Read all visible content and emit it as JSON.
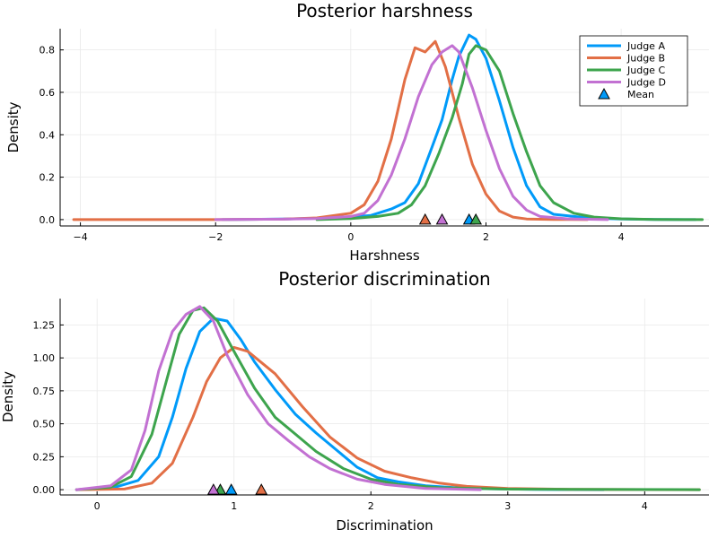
{
  "chart_data": [
    {
      "type": "line",
      "title": "Posterior harshness",
      "xlabel": "Harshness",
      "ylabel": "Density",
      "xlim": [
        -4.3,
        5.3
      ],
      "ylim": [
        -0.03,
        0.9
      ],
      "xticks": [
        -4,
        -2,
        0,
        2,
        4
      ],
      "yticks": [
        0.0,
        0.2,
        0.4,
        0.6,
        0.8
      ],
      "grid": true,
      "legend_position": "top-right",
      "legend_mean_label": "Mean",
      "series": [
        {
          "name": "Judge A",
          "color": "#009af9",
          "mean": 1.75,
          "points": [
            [
              -1.9,
              0
            ],
            [
              -1.0,
              0.003
            ],
            [
              -0.5,
              0.006
            ],
            [
              0,
              0.012
            ],
            [
              0.3,
              0.02
            ],
            [
              0.6,
              0.05
            ],
            [
              0.8,
              0.08
            ],
            [
              1.0,
              0.17
            ],
            [
              1.2,
              0.34
            ],
            [
              1.35,
              0.47
            ],
            [
              1.5,
              0.66
            ],
            [
              1.6,
              0.77
            ],
            [
              1.75,
              0.87
            ],
            [
              1.85,
              0.85
            ],
            [
              2.0,
              0.76
            ],
            [
              2.2,
              0.56
            ],
            [
              2.4,
              0.34
            ],
            [
              2.6,
              0.16
            ],
            [
              2.8,
              0.06
            ],
            [
              3.0,
              0.025
            ],
            [
              3.5,
              0.008
            ],
            [
              4.0,
              0.003
            ],
            [
              4.5,
              0.001
            ],
            [
              5.1,
              0
            ]
          ]
        },
        {
          "name": "Judge B",
          "color": "#e26f46",
          "mean": 1.1,
          "points": [
            [
              -4.1,
              0
            ],
            [
              -2.0,
              0
            ],
            [
              -1.0,
              0.002
            ],
            [
              -0.5,
              0.008
            ],
            [
              0,
              0.03
            ],
            [
              0.2,
              0.07
            ],
            [
              0.4,
              0.18
            ],
            [
              0.6,
              0.38
            ],
            [
              0.8,
              0.66
            ],
            [
              0.95,
              0.81
            ],
            [
              1.1,
              0.79
            ],
            [
              1.25,
              0.84
            ],
            [
              1.4,
              0.72
            ],
            [
              1.6,
              0.48
            ],
            [
              1.8,
              0.26
            ],
            [
              2.0,
              0.12
            ],
            [
              2.2,
              0.04
            ],
            [
              2.4,
              0.012
            ],
            [
              2.6,
              0.003
            ],
            [
              3.0,
              0.001
            ],
            [
              3.5,
              0
            ]
          ]
        },
        {
          "name": "Judge C",
          "color": "#3da44d",
          "mean": 1.85,
          "points": [
            [
              -0.5,
              0
            ],
            [
              0,
              0.005
            ],
            [
              0.4,
              0.015
            ],
            [
              0.7,
              0.03
            ],
            [
              0.9,
              0.07
            ],
            [
              1.1,
              0.16
            ],
            [
              1.3,
              0.31
            ],
            [
              1.5,
              0.48
            ],
            [
              1.65,
              0.64
            ],
            [
              1.75,
              0.78
            ],
            [
              1.85,
              0.82
            ],
            [
              2.0,
              0.8
            ],
            [
              2.2,
              0.7
            ],
            [
              2.4,
              0.5
            ],
            [
              2.6,
              0.32
            ],
            [
              2.8,
              0.16
            ],
            [
              3.0,
              0.08
            ],
            [
              3.3,
              0.03
            ],
            [
              3.6,
              0.012
            ],
            [
              4.0,
              0.004
            ],
            [
              4.5,
              0.001
            ],
            [
              5.2,
              0
            ]
          ]
        },
        {
          "name": "Judge D",
          "color": "#c271d2",
          "mean": 1.35,
          "points": [
            [
              -2.0,
              0
            ],
            [
              -1.0,
              0.002
            ],
            [
              -0.5,
              0.005
            ],
            [
              0,
              0.015
            ],
            [
              0.2,
              0.03
            ],
            [
              0.4,
              0.09
            ],
            [
              0.6,
              0.21
            ],
            [
              0.8,
              0.38
            ],
            [
              1.0,
              0.58
            ],
            [
              1.2,
              0.73
            ],
            [
              1.35,
              0.79
            ],
            [
              1.5,
              0.82
            ],
            [
              1.6,
              0.79
            ],
            [
              1.8,
              0.62
            ],
            [
              2.0,
              0.42
            ],
            [
              2.2,
              0.24
            ],
            [
              2.4,
              0.11
            ],
            [
              2.6,
              0.045
            ],
            [
              2.8,
              0.015
            ],
            [
              3.2,
              0.004
            ],
            [
              3.8,
              0
            ]
          ]
        }
      ]
    },
    {
      "type": "line",
      "title": "Posterior discrimination",
      "xlabel": "Discrimination",
      "ylabel": "Density",
      "xlim": [
        -0.27,
        4.47
      ],
      "ylim": [
        -0.04,
        1.45
      ],
      "xticks": [
        0,
        1,
        2,
        3,
        4
      ],
      "yticks": [
        0.0,
        0.25,
        0.5,
        0.75,
        1.0,
        1.25
      ],
      "grid": true,
      "series": [
        {
          "name": "Judge A",
          "color": "#009af9",
          "mean": 0.98,
          "points": [
            [
              -0.15,
              0
            ],
            [
              0.1,
              0.01
            ],
            [
              0.3,
              0.07
            ],
            [
              0.45,
              0.25
            ],
            [
              0.55,
              0.55
            ],
            [
              0.65,
              0.92
            ],
            [
              0.75,
              1.2
            ],
            [
              0.85,
              1.3
            ],
            [
              0.95,
              1.28
            ],
            [
              1.05,
              1.14
            ],
            [
              1.15,
              0.97
            ],
            [
              1.3,
              0.76
            ],
            [
              1.45,
              0.57
            ],
            [
              1.6,
              0.43
            ],
            [
              1.75,
              0.3
            ],
            [
              1.9,
              0.17
            ],
            [
              2.05,
              0.09
            ],
            [
              2.2,
              0.06
            ],
            [
              2.4,
              0.03
            ],
            [
              2.7,
              0.01
            ],
            [
              3.2,
              0.002
            ],
            [
              3.7,
              0
            ]
          ]
        },
        {
          "name": "Judge B",
          "color": "#e26f46",
          "mean": 1.2,
          "points": [
            [
              -0.15,
              0
            ],
            [
              0.2,
              0.005
            ],
            [
              0.4,
              0.05
            ],
            [
              0.55,
              0.2
            ],
            [
              0.7,
              0.55
            ],
            [
              0.8,
              0.82
            ],
            [
              0.9,
              1.0
            ],
            [
              1.0,
              1.08
            ],
            [
              1.1,
              1.05
            ],
            [
              1.3,
              0.88
            ],
            [
              1.5,
              0.63
            ],
            [
              1.7,
              0.4
            ],
            [
              1.9,
              0.24
            ],
            [
              2.1,
              0.14
            ],
            [
              2.3,
              0.09
            ],
            [
              2.5,
              0.05
            ],
            [
              2.7,
              0.025
            ],
            [
              3.0,
              0.01
            ],
            [
              3.5,
              0.002
            ],
            [
              4.0,
              0.001
            ],
            [
              4.4,
              0
            ]
          ]
        },
        {
          "name": "Judge C",
          "color": "#3da44d",
          "mean": 0.9,
          "points": [
            [
              -0.15,
              0
            ],
            [
              0.1,
              0.02
            ],
            [
              0.25,
              0.1
            ],
            [
              0.4,
              0.42
            ],
            [
              0.5,
              0.8
            ],
            [
              0.6,
              1.18
            ],
            [
              0.7,
              1.36
            ],
            [
              0.78,
              1.38
            ],
            [
              0.88,
              1.28
            ],
            [
              1.0,
              1.05
            ],
            [
              1.15,
              0.77
            ],
            [
              1.3,
              0.55
            ],
            [
              1.45,
              0.42
            ],
            [
              1.6,
              0.29
            ],
            [
              1.8,
              0.16
            ],
            [
              2.0,
              0.08
            ],
            [
              2.2,
              0.04
            ],
            [
              2.5,
              0.015
            ],
            [
              3.0,
              0.004
            ],
            [
              4.4,
              0
            ]
          ]
        },
        {
          "name": "Judge D",
          "color": "#c271d2",
          "mean": 0.85,
          "points": [
            [
              -0.15,
              0
            ],
            [
              0.1,
              0.03
            ],
            [
              0.25,
              0.15
            ],
            [
              0.35,
              0.45
            ],
            [
              0.45,
              0.9
            ],
            [
              0.55,
              1.2
            ],
            [
              0.65,
              1.33
            ],
            [
              0.75,
              1.39
            ],
            [
              0.85,
              1.28
            ],
            [
              0.95,
              1.02
            ],
            [
              1.1,
              0.72
            ],
            [
              1.25,
              0.5
            ],
            [
              1.4,
              0.37
            ],
            [
              1.55,
              0.25
            ],
            [
              1.7,
              0.16
            ],
            [
              1.9,
              0.08
            ],
            [
              2.1,
              0.04
            ],
            [
              2.4,
              0.01
            ],
            [
              2.8,
              0
            ]
          ]
        }
      ]
    }
  ]
}
